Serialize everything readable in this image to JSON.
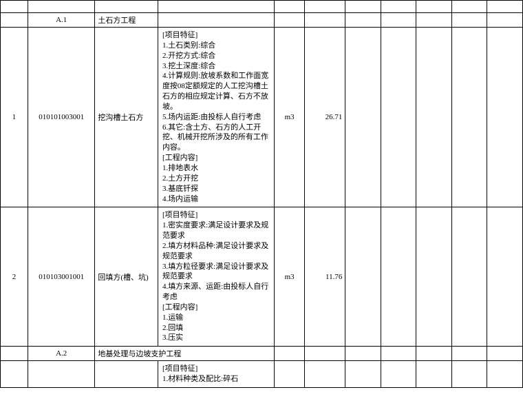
{
  "table": {
    "border_color": "#000000",
    "background_color": "#ffffff",
    "font_size": 11,
    "rows": [
      {
        "type": "header",
        "seq": "",
        "code": "",
        "name": "",
        "spec": "",
        "unit": "",
        "qty": ""
      },
      {
        "type": "section",
        "seq": "",
        "code": "A.1",
        "name": "土石方工程",
        "spec": "",
        "unit": "",
        "qty": ""
      },
      {
        "type": "item",
        "seq": "1",
        "code": "010101003001",
        "name": "挖沟槽土石方",
        "spec": "[项目特征]\n1.土石类别:综合\n2.开挖方式:综合\n3.挖土深度:综合\n4.计算规则:放坡系数和工作面宽度按08定额规定的人工挖沟槽土石方的相应规定计算、石方不放坡。\n5.场内运距:由投标人自行考虑\n6.其它:含土方、石方的人工开挖、机械开挖所涉及的所有工作内容。\n[工程内容]\n1.排地表水\n2.土方开挖\n3.基底钎探\n4.场内运输",
        "unit": "m3",
        "qty": "26.71"
      },
      {
        "type": "item",
        "seq": "2",
        "code": "010103001001",
        "name": "回填方(槽、坑)",
        "spec": "[项目特征]\n1.密实度要求:满足设计要求及规范要求\n2.填方材料品种:满足设计要求及规范要求\n3.填方粒径要求:满足设计要求及规范要求\n4.填方来源、运距:由投标人自行考虑\n[工程内容]\n1.运输\n2.回填\n3.压实",
        "unit": "m3",
        "qty": "11.76"
      },
      {
        "type": "section",
        "seq": "",
        "code": "A.2",
        "name": "地基处理与边坡支护工程",
        "spec": "",
        "unit": "",
        "qty": ""
      },
      {
        "type": "item-partial",
        "seq": "",
        "code": "",
        "name": "",
        "spec": "[项目特征]\n1.材料种类及配比:碎石",
        "unit": "",
        "qty": ""
      }
    ]
  }
}
